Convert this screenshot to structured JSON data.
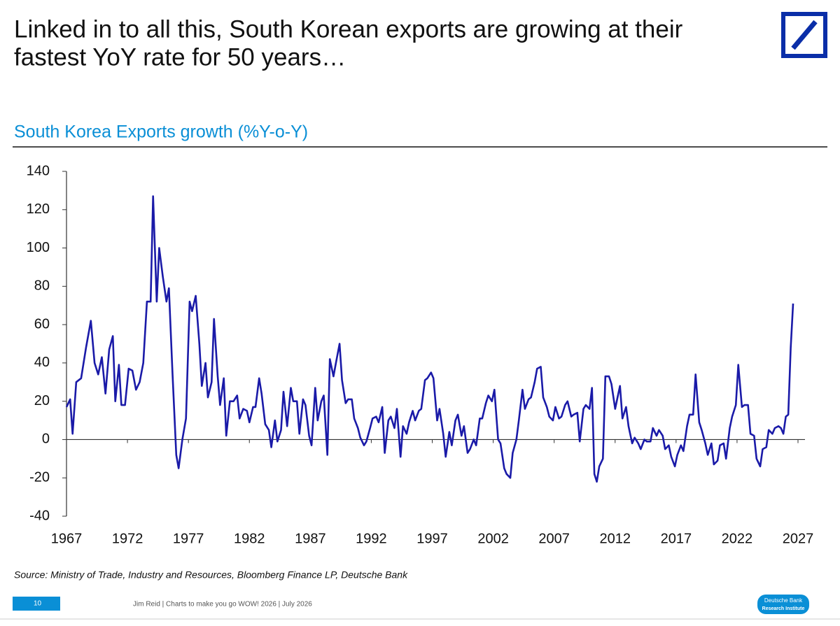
{
  "header": {
    "title_lines": [
      "Linked in to all this, South Korean exports are growing at their",
      "fastest YoY rate for 50 years…"
    ]
  },
  "chart_data": {
    "type": "line",
    "title": "South Korea Exports growth (%Y-o-Y)",
    "color": "#1a1aa8",
    "x": [
      1967.0,
      1967.3,
      1967.5,
      1967.8,
      1968.2,
      1968.6,
      1969.0,
      1969.3,
      1969.6,
      1969.9,
      1970.2,
      1970.5,
      1970.8,
      1971.0,
      1971.3,
      1971.5,
      1971.8,
      1972.1,
      1972.4,
      1972.7,
      1973.0,
      1973.3,
      1973.6,
      1973.9,
      1974.1,
      1974.4,
      1974.6,
      1974.9,
      1975.2,
      1975.4,
      1975.7,
      1976.0,
      1976.2,
      1976.5,
      1976.8,
      1977.1,
      1977.3,
      1977.6,
      1977.9,
      1978.1,
      1978.4,
      1978.6,
      1978.9,
      1979.1,
      1979.4,
      1979.6,
      1979.9,
      1980.1,
      1980.4,
      1980.7,
      1981.0,
      1981.2,
      1981.5,
      1981.8,
      1982.0,
      1982.3,
      1982.5,
      1982.8,
      1983.0,
      1983.3,
      1983.6,
      1983.8,
      1984.1,
      1984.3,
      1984.6,
      1984.8,
      1985.1,
      1985.4,
      1985.6,
      1985.9,
      1986.1,
      1986.4,
      1986.6,
      1986.9,
      1987.1,
      1987.4,
      1987.6,
      1987.9,
      1988.1,
      1988.4,
      1988.6,
      1988.9,
      1989.1,
      1989.4,
      1989.6,
      1989.9,
      1990.1,
      1990.4,
      1990.6,
      1990.9,
      1991.1,
      1991.4,
      1991.6,
      1991.9,
      1992.1,
      1992.4,
      1992.6,
      1992.9,
      1993.1,
      1993.4,
      1993.6,
      1993.9,
      1994.1,
      1994.4,
      1994.6,
      1994.9,
      1995.1,
      1995.4,
      1995.6,
      1995.9,
      1996.1,
      1996.4,
      1996.6,
      1996.9,
      1997.1,
      1997.4,
      1997.6,
      1997.9,
      1998.1,
      1998.4,
      1998.6,
      1998.9,
      1999.1,
      1999.4,
      1999.6,
      1999.9,
      2000.1,
      2000.4,
      2000.6,
      2000.9,
      2001.1,
      2001.4,
      2001.6,
      2001.9,
      2002.1,
      2002.4,
      2002.6,
      2002.9,
      2003.1,
      2003.4,
      2003.6,
      2003.9,
      2004.1,
      2004.4,
      2004.6,
      2004.9,
      2005.1,
      2005.4,
      2005.6,
      2005.9,
      2006.1,
      2006.4,
      2006.6,
      2006.9,
      2007.1,
      2007.4,
      2007.6,
      2007.9,
      2008.1,
      2008.4,
      2008.6,
      2008.9,
      2009.1,
      2009.4,
      2009.6,
      2009.9,
      2010.1,
      2010.3,
      2010.5,
      2010.7,
      2011.0,
      2011.2,
      2011.5,
      2011.7,
      2012.0,
      2012.2,
      2012.4,
      2012.6,
      2012.9,
      2013.1,
      2013.4,
      2013.6,
      2013.9,
      2014.1,
      2014.4,
      2014.6,
      2014.9,
      2015.1,
      2015.4,
      2015.6,
      2015.9,
      2016.1,
      2016.4,
      2016.6,
      2016.9,
      2017.1,
      2017.4,
      2017.6,
      2017.9,
      2018.1,
      2018.4,
      2018.6,
      2018.9,
      2019.1,
      2019.4,
      2019.6,
      2019.9,
      2020.1,
      2020.4,
      2020.6,
      2020.9,
      2021.1,
      2021.4,
      2021.6,
      2021.9,
      2022.1,
      2022.4,
      2022.6,
      2022.9,
      2023.1,
      2023.4,
      2023.6,
      2023.9,
      2024.1,
      2024.4,
      2024.6,
      2024.9,
      2025.1,
      2025.4,
      2025.6,
      2025.8,
      2026.0,
      2026.2,
      2026.4,
      2026.6
    ],
    "values": [
      17,
      21,
      3,
      30,
      32,
      48,
      62,
      40,
      34,
      43,
      24,
      47,
      54,
      20,
      39,
      18,
      18,
      37,
      36,
      26,
      30,
      40,
      72,
      72,
      127,
      72,
      100,
      85,
      72,
      79,
      34,
      -8,
      -15,
      0,
      11,
      72,
      67,
      75,
      50,
      28,
      40,
      22,
      30,
      63,
      33,
      18,
      32,
      2,
      20,
      20,
      23,
      11,
      16,
      15,
      9,
      17,
      17,
      32,
      24,
      8,
      5,
      -4,
      10,
      -1,
      5,
      25,
      7,
      27,
      20,
      20,
      3,
      21,
      18,
      2,
      -3,
      27,
      10,
      20,
      23,
      -8,
      42,
      33,
      40,
      50,
      31,
      19,
      21,
      21,
      11,
      6,
      1,
      -3,
      -1,
      6,
      11,
      12,
      9,
      17,
      -7,
      10,
      12,
      6,
      16,
      -9,
      7,
      3,
      9,
      15,
      10,
      15,
      16,
      31,
      32,
      35,
      32,
      10,
      16,
      3,
      -9,
      4,
      -3,
      10,
      13,
      2,
      7,
      -7,
      -5,
      0,
      -3,
      11,
      11,
      19,
      23,
      20,
      26,
      0,
      -2,
      -15,
      -18,
      -20,
      -7,
      0,
      10,
      26,
      16,
      21,
      22,
      30,
      37,
      38,
      22,
      17,
      12,
      10,
      17,
      11,
      12,
      18,
      20,
      12,
      13,
      14,
      -1,
      16,
      18,
      16,
      27,
      -18,
      -22,
      -14,
      -10,
      33,
      33,
      29,
      16,
      22,
      28,
      11,
      17,
      7,
      -2,
      1,
      -2,
      -5,
      0,
      -1,
      -1,
      6,
      2,
      5,
      2,
      -5,
      -3,
      -9,
      -14,
      -8,
      -3,
      -6,
      7,
      13,
      13,
      34,
      9,
      5,
      -2,
      -8,
      -2,
      -13,
      -11,
      -3,
      -2,
      -10,
      6,
      12,
      18,
      39,
      17,
      18,
      18,
      3,
      2,
      -10,
      -14,
      -5,
      -4,
      5,
      3,
      6,
      7,
      6,
      3,
      12,
      13,
      48,
      71
    ],
    "xlim": [
      1967,
      2027
    ],
    "xticks": [
      1967,
      1972,
      1977,
      1982,
      1987,
      1992,
      1997,
      2002,
      2007,
      2012,
      2017,
      2022,
      2027
    ],
    "ylim": [
      -40,
      140
    ],
    "yticks": [
      -40,
      -20,
      0,
      20,
      40,
      60,
      80,
      100,
      120,
      140
    ],
    "source": "Source: Ministry of Trade, Industry and Resources, Bloomberg Finance LP, Deutsche Bank"
  },
  "footer": {
    "page": "10",
    "text": "Jim Reid | Charts to make you go WOW! 2026 | July 2026",
    "badge": [
      "Deutsche Bank",
      "Research Institute"
    ]
  }
}
